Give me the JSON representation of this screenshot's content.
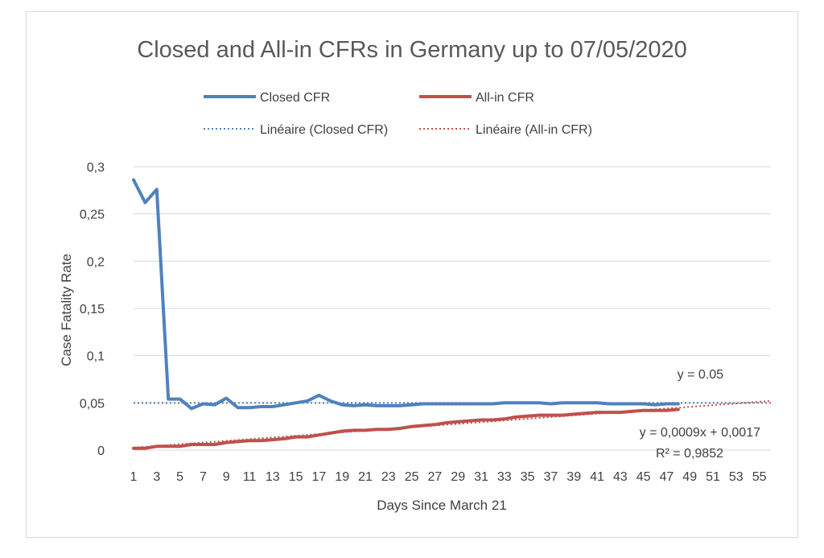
{
  "chart_data": {
    "type": "line",
    "title": "Closed and All-in CFRs in Germany up to 07/05/2020",
    "xlabel": "Days Since March 21",
    "ylabel": "Case Fatality Rate",
    "xlim": [
      1,
      56
    ],
    "ylim": [
      0,
      0.3
    ],
    "x_ticks": [
      "1",
      "3",
      "5",
      "7",
      "9",
      "11",
      "13",
      "15",
      "17",
      "19",
      "21",
      "23",
      "25",
      "27",
      "29",
      "31",
      "33",
      "35",
      "37",
      "39",
      "41",
      "43",
      "45",
      "47",
      "49",
      "51",
      "53",
      "55"
    ],
    "y_ticks": [
      {
        "v": 0,
        "label": "0"
      },
      {
        "v": 0.05,
        "label": "0,05"
      },
      {
        "v": 0.1,
        "label": "0,1"
      },
      {
        "v": 0.15,
        "label": "0,15"
      },
      {
        "v": 0.2,
        "label": "0,2"
      },
      {
        "v": 0.25,
        "label": "0,25"
      },
      {
        "v": 0.3,
        "label": "0,3"
      }
    ],
    "grid": true,
    "legend_position": "top",
    "legend": [
      "Closed CFR",
      "All-in CFR",
      "Linéaire (Closed CFR)",
      "Linéaire (All-in CFR)"
    ],
    "series": [
      {
        "name": "Closed CFR",
        "color": "#4f81bd",
        "x": [
          1,
          2,
          3,
          4,
          5,
          6,
          7,
          8,
          9,
          10,
          11,
          12,
          13,
          14,
          15,
          16,
          17,
          18,
          19,
          20,
          21,
          22,
          23,
          24,
          25,
          26,
          27,
          28,
          29,
          30,
          31,
          32,
          33,
          34,
          35,
          36,
          37,
          38,
          39,
          40,
          41,
          42,
          43,
          44,
          45,
          46,
          47,
          48
        ],
        "values": [
          0.286,
          0.262,
          0.276,
          0.054,
          0.054,
          0.044,
          0.049,
          0.048,
          0.055,
          0.045,
          0.045,
          0.046,
          0.046,
          0.048,
          0.05,
          0.052,
          0.058,
          0.052,
          0.048,
          0.047,
          0.048,
          0.047,
          0.047,
          0.047,
          0.048,
          0.049,
          0.049,
          0.049,
          0.049,
          0.049,
          0.049,
          0.049,
          0.05,
          0.05,
          0.05,
          0.05,
          0.049,
          0.05,
          0.05,
          0.05,
          0.05,
          0.049,
          0.049,
          0.049,
          0.049,
          0.048,
          0.049,
          0.049
        ]
      },
      {
        "name": "All-in CFR",
        "color": "#c0504d",
        "x": [
          1,
          2,
          3,
          4,
          5,
          6,
          7,
          8,
          9,
          10,
          11,
          12,
          13,
          14,
          15,
          16,
          17,
          18,
          19,
          20,
          21,
          22,
          23,
          24,
          25,
          26,
          27,
          28,
          29,
          30,
          31,
          32,
          33,
          34,
          35,
          36,
          37,
          38,
          39,
          40,
          41,
          42,
          43,
          44,
          45,
          46,
          47,
          48
        ],
        "values": [
          0.002,
          0.002,
          0.004,
          0.004,
          0.004,
          0.006,
          0.006,
          0.006,
          0.008,
          0.009,
          0.01,
          0.01,
          0.011,
          0.012,
          0.014,
          0.014,
          0.016,
          0.018,
          0.02,
          0.021,
          0.021,
          0.022,
          0.022,
          0.023,
          0.025,
          0.026,
          0.027,
          0.029,
          0.03,
          0.031,
          0.032,
          0.032,
          0.033,
          0.035,
          0.036,
          0.037,
          0.037,
          0.037,
          0.038,
          0.039,
          0.04,
          0.04,
          0.04,
          0.041,
          0.042,
          0.042,
          0.042,
          0.043
        ]
      }
    ],
    "trendlines": [
      {
        "name": "Linéaire (Closed CFR)",
        "color": "#4f81bd",
        "slope": 0,
        "intercept": 0.05,
        "x_range": [
          1,
          56
        ],
        "equation": "y = 0.05"
      },
      {
        "name": "Linéaire (All-in CFR)",
        "color": "#c0504d",
        "slope": 0.0009,
        "intercept": 0.0017,
        "x_range": [
          1,
          56
        ],
        "equation": "y = 0,0009x + 0,0017",
        "r2": "R² = 0,9852"
      }
    ]
  }
}
